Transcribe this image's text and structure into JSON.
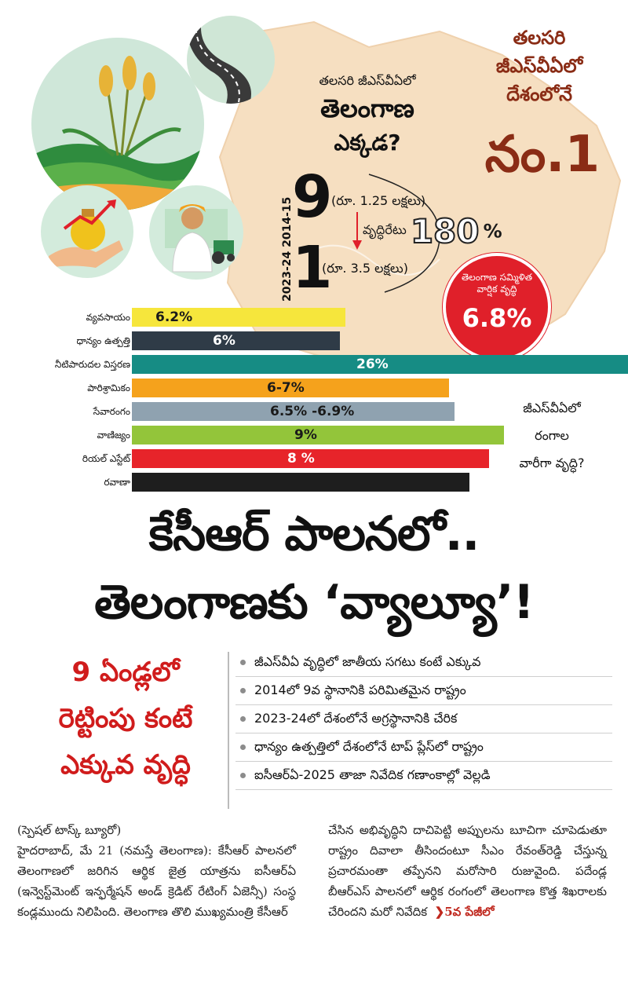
{
  "infographic": {
    "map_question": {
      "line1": "తలసరి జీఎస్‌వీఏలో",
      "line2": "తెలంగాణ",
      "line3": "ఎక్కడ?"
    },
    "years": "2023-24 2014-15",
    "rank_2014": {
      "rank": "9",
      "note": "(రూ. 1.25 లక్షలు)"
    },
    "rank_2023": {
      "rank": "1",
      "note": "(రూ. 3.5 లక్షలు)"
    },
    "growth_rate": {
      "label": "వృద్ధిరేటు",
      "value": "180",
      "unit": "%"
    },
    "top_right": {
      "line1": "తలసరి",
      "line2": "జీఎస్‌వీఏలో",
      "line3": "దేశంలోనే",
      "rank": "నం.1"
    },
    "badge": {
      "text": "తెలంగాణ సమ్మిళిత వార్షిక వృద్ధి",
      "value": "6.8%"
    },
    "sector_question": {
      "line1": "జీఎస్‌వీఏలో",
      "line2": "రంగాల",
      "line3": "వారీగా వృద్ధి?"
    },
    "sectors": [
      {
        "label": "వ్యవసాయం",
        "value_text": "6.2%",
        "color": "#f6e63c",
        "text_color": "#1a1a1a",
        "fill": 0.43
      },
      {
        "label": "ధాన్యం ఉత్పత్తి",
        "value_text": "6%",
        "color": "#2f3b47",
        "text_color": "#ffffff",
        "fill": 0.42
      },
      {
        "label": "నీటిపారుదల విస్తరణ",
        "value_text": "26%",
        "color": "#168c84",
        "text_color": "#ffffff",
        "fill": 1.0
      },
      {
        "label": "పారిశ్రామికం",
        "value_text": "6-7%",
        "color": "#f5a21c",
        "text_color": "#1a1a1a",
        "fill": 0.64
      },
      {
        "label": "సేవారంగం",
        "value_text": "6.5% -6.9%",
        "color": "#8fa2b0",
        "text_color": "#1a1a1a",
        "fill": 0.65
      },
      {
        "label": "వాణిజ్యం",
        "value_text": "9%",
        "color": "#93c53a",
        "text_color": "#1a1a1a",
        "fill": 0.75
      },
      {
        "label": "రియల్ ఎస్టేట్",
        "value_text": "8 %",
        "color": "#e7242a",
        "text_color": "#ffffff",
        "fill": 0.72
      },
      {
        "label": "రవాణా",
        "value_text": "",
        "color": "#1e1e1e",
        "text_color": "#ffffff",
        "fill": 0.68
      }
    ]
  },
  "headline": {
    "line1": "కేసీఆర్ పాలనలో..",
    "line2": "తెలంగాణకు ‘వ్యాల్యూ’!"
  },
  "subhead": {
    "line1": "9 ఏండ్లలో",
    "line2": "రెట్టింపు కంటే",
    "line3": "ఎక్కువ వృద్ధి"
  },
  "bullets": [
    "జీఎస్‌వీఏ వృద్ధిలో జాతీయ సగటు కంటే ఎక్కువ",
    "2014లో 9వ స్థానానికి పరిమితమైన రాష్ట్రం",
    "2023-24లో దేశంలోనే అగ్రస్థానానికి చేరిక",
    "ధాన్యం ఉత్పత్తిలో దేశంలోనే టాప్ ప్లేస్‌లో రాష్ట్రం",
    "ఐసీఆర్ఏ-2025 తాజా నివేదిక గణాంకాల్లో వెల్లడి"
  ],
  "article": {
    "byline": "(స్పెషల్ టాస్క్ బ్యూరో)",
    "col1": "హైదరాబాద్, మే 21 (నమస్తే తెలంగాణ): కేసీఆర్ పాలనలో తెలంగాణలో జరిగిన ఆర్థిక జైత్ర యాత్రను ఐసీఆర్ఏ (ఇన్వెస్ట్‌మెంట్ ఇన్ఫర్మేషన్ అండ్ క్రెడిట్ రేటింగ్ ఏజెన్సీ) సంస్థ కండ్లముందు నిలిపింది. తెలంగాణ తొలి ముఖ్యమంత్రి కేసీఆర్",
    "col2": "చేసిన అభివృద్ధిని దాచిపెట్టి అప్పులను బూచిగా చూపెడుతూ రాష్ట్రం దివాలా తీసిందంటూ సీఎం రేవంత్‌రెడ్డి చేస్తున్న ప్రచారమంతా తప్పేనని మరోసారి రుజువైంది. పదేండ్ల బీఆర్‌ఎస్ పాలనలో ఆర్థిక రంగంలో తెలంగాణ కొత్త శిఖరాలకు చేరిందని మరో నివేదిక",
    "continued": "5వ పేజీలో"
  }
}
